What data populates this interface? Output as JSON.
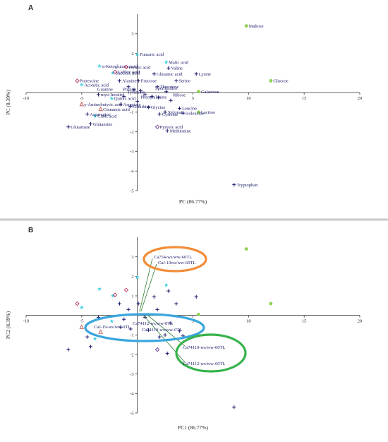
{
  "chart_data": [
    {
      "type": "scatter",
      "panel_label": "A",
      "xlabel": "PC (86.77%)",
      "ylabel": "PC (8.39%)",
      "xlim": [
        -10,
        20
      ],
      "ylim": [
        -5,
        4
      ],
      "x_ticks": [
        -10,
        -5,
        5,
        10,
        15,
        20
      ],
      "y_ticks": [
        -5,
        -4,
        -3,
        -2,
        -1,
        1,
        2,
        3
      ],
      "grid": false,
      "points": [
        {
          "label": "Maltose",
          "x": 9.8,
          "y": 3.4,
          "marker": "dot",
          "color": "#8fd14f"
        },
        {
          "label": "Glucose",
          "x": 12.0,
          "y": 0.6,
          "marker": "dot",
          "color": "#8fd14f"
        },
        {
          "label": "Galactose",
          "x": 5.5,
          "y": 0.05,
          "marker": "dot",
          "color": "#8fd14f"
        },
        {
          "label": "Lactose",
          "x": 5.5,
          "y": -1.0,
          "marker": "dot",
          "color": "#8fd14f"
        },
        {
          "label": "Fumaric acid",
          "x": 0.0,
          "y": 1.95,
          "marker": "star",
          "color": "#3fd0e0"
        },
        {
          "label": "Malic acid",
          "x": 2.6,
          "y": 1.55,
          "marker": "star",
          "color": "#3fd0e0"
        },
        {
          "label": "α-Ketoglutaric acid",
          "x": -3.4,
          "y": 1.35,
          "marker": "star",
          "color": "#3fd0e0"
        },
        {
          "label": "Succinic acid",
          "x": -2.2,
          "y": 1.0,
          "marker": "star",
          "color": "#3fd0e0"
        },
        {
          "label": "Aconitic acid",
          "x": -5.0,
          "y": 0.4,
          "marker": "star",
          "color": "#3fd0e0"
        },
        {
          "label": "Citric acid",
          "x": -3.8,
          "y": -1.2,
          "marker": "star",
          "color": "#3fd0e0"
        },
        {
          "label": "Quinic acid",
          "x": -2.3,
          "y": -0.3,
          "marker": "star",
          "color": "#3fd0e0"
        },
        {
          "label": "Ferulic acid",
          "x": -1.0,
          "y": 1.3,
          "marker": "diamond",
          "color": "#b03060"
        },
        {
          "label": "Caffeic acid",
          "x": -2.0,
          "y": 1.05,
          "marker": "diamond",
          "color": "#b03060"
        },
        {
          "label": "Putrescine",
          "x": -5.4,
          "y": 0.6,
          "marker": "diamond",
          "color": "#b03060"
        },
        {
          "label": "Cinnamic acid",
          "x": -3.3,
          "y": -0.85,
          "marker": "triangle",
          "color": "#c0504d"
        },
        {
          "label": "γ-Aminobutyric acid",
          "x": -5.0,
          "y": -0.6,
          "marker": "triangle",
          "color": "#c0504d"
        },
        {
          "label": "Pyruvic acid",
          "x": 1.8,
          "y": -1.75,
          "marker": "diamond",
          "color": "#6a3d9a"
        },
        {
          "label": "Valine",
          "x": 2.8,
          "y": 1.25,
          "marker": "plus",
          "color": "#1a1a6b"
        },
        {
          "label": "Glutamic acid",
          "x": 1.5,
          "y": 0.95,
          "marker": "plus",
          "color": "#1a1a6b"
        },
        {
          "label": "Lysine",
          "x": 5.3,
          "y": 0.95,
          "marker": "plus",
          "color": "#1a1a6b"
        },
        {
          "label": "Alanine",
          "x": -1.6,
          "y": 0.6,
          "marker": "plus",
          "color": "#1a1a6b"
        },
        {
          "label": "Fructose",
          "x": 0.1,
          "y": 0.6,
          "marker": "plus",
          "color": "#1a1a6b"
        },
        {
          "label": "Serine",
          "x": 3.5,
          "y": 0.6,
          "marker": "plus",
          "color": "#1a1a6b"
        },
        {
          "label": "Threonine",
          "x": 1.8,
          "y": 0.3,
          "marker": "plus",
          "color": "#1a1a6b"
        },
        {
          "label": "Glutamate",
          "x": -6.2,
          "y": -1.75,
          "marker": "plus",
          "color": "#1a1a6b"
        },
        {
          "label": "Glutamine",
          "x": -4.2,
          "y": -1.6,
          "marker": "plus",
          "color": "#1a1a6b"
        },
        {
          "label": "Asparagine",
          "x": -4.5,
          "y": -1.1,
          "marker": "plus",
          "color": "#1a1a6b"
        },
        {
          "label": "Aspartate",
          "x": -1.5,
          "y": -0.6,
          "marker": "plus",
          "color": "#1a1a6b"
        },
        {
          "label": "myo-Inositol",
          "x": -3.5,
          "y": -0.1,
          "marker": "plus",
          "color": "#1a1a6b"
        },
        {
          "label": "Ornithine",
          "x": -0.6,
          "y": -0.7,
          "marker": "plus",
          "color": "#1a1a6b"
        },
        {
          "label": "Glycine",
          "x": 1.0,
          "y": -0.75,
          "marker": "plus",
          "color": "#1a1a6b"
        },
        {
          "label": "Leucine",
          "x": 3.8,
          "y": -0.8,
          "marker": "plus",
          "color": "#1a1a6b"
        },
        {
          "label": "Xylonate",
          "x": 2.5,
          "y": -1.0,
          "marker": "plus",
          "color": "#1a1a6b"
        },
        {
          "label": "Isoleucine",
          "x": 4.1,
          "y": -1.05,
          "marker": "plus",
          "color": "#1a1a6b"
        },
        {
          "label": "Cysteine",
          "x": 2.0,
          "y": -1.1,
          "marker": "plus",
          "color": "#1a1a6b"
        },
        {
          "label": "Methionine",
          "x": 2.7,
          "y": -1.95,
          "marker": "plus",
          "color": "#1a1a6b"
        },
        {
          "label": "Tryptophan",
          "x": 8.7,
          "y": -4.7,
          "marker": "plus",
          "color": "#1a1a6b"
        }
      ],
      "unlabeled_points": [
        {
          "x": -0.8,
          "y": 0.3,
          "marker": "plus",
          "color": "#1a1a6b"
        },
        {
          "x": -0.3,
          "y": 0.15,
          "marker": "plus",
          "color": "#1a1a6b"
        },
        {
          "x": 0.3,
          "y": 0.1,
          "marker": "plus",
          "color": "#1a1a6b"
        },
        {
          "x": 0.7,
          "y": -0.1,
          "marker": "plus",
          "color": "#1a1a6b"
        },
        {
          "x": 1.3,
          "y": -0.2,
          "marker": "plus",
          "color": "#1a1a6b"
        },
        {
          "x": 1.9,
          "y": -0.25,
          "marker": "plus",
          "color": "#1a1a6b"
        },
        {
          "x": 2.6,
          "y": 0.05,
          "marker": "plus",
          "color": "#1a1a6b"
        },
        {
          "x": 3.0,
          "y": -0.4,
          "marker": "plus",
          "color": "#1a1a6b"
        },
        {
          "x": -1.2,
          "y": -0.2,
          "marker": "plus",
          "color": "#1a1a6b"
        },
        {
          "x": 0.0,
          "y": -0.45,
          "marker": "plus",
          "color": "#1a1a6b"
        }
      ],
      "overlapping_text_labels": [
        {
          "text": "Proline",
          "x": -1.3,
          "y": 0.1
        },
        {
          "text": "Guanine",
          "x": -3.6,
          "y": 0.1
        },
        {
          "text": "Sperimidine",
          "x": 1.6,
          "y": 0.15
        },
        {
          "text": "Tyramine",
          "x": -0.9,
          "y": -0.05
        },
        {
          "text": "Phenylalanine",
          "x": 0.3,
          "y": -0.3
        },
        {
          "text": "Ribose",
          "x": 3.2,
          "y": -0.2
        }
      ]
    },
    {
      "type": "scatter",
      "panel_label": "B",
      "xlabel": "PC1 (86.77%)",
      "ylabel": "PC2 (8.39%)",
      "xlim": [
        -10,
        20
      ],
      "ylim": [
        -5,
        4
      ],
      "x_ticks": [
        -10,
        -5,
        5,
        10,
        15,
        20
      ],
      "y_ticks": [
        -5,
        -4,
        -3,
        -2,
        -1,
        1,
        2,
        3
      ],
      "grid": false,
      "annotations": [
        {
          "text": "Ca754-ws/ww-60TL",
          "color": "#1a1a6b"
        },
        {
          "text": "CaJ-10ws/ww-60TL",
          "color": "#1a1a6b"
        },
        {
          "text": "Ca74112-ws/ww-0TL",
          "color": "#1a1a6b"
        },
        {
          "text": "CaJ-19-ws/ww-0TL",
          "color": "#1a1a6b"
        },
        {
          "text": "Ca74110-ws/ww-0TL",
          "color": "#1a1a6b"
        },
        {
          "text": "Ca74110-ws/ww-60TL",
          "color": "#1a1a6b"
        },
        {
          "text": "Ca74112-ws/ww-60TL",
          "color": "#1a1a6b"
        }
      ],
      "ellipse_colors": {
        "orange": "#f28c38",
        "blue": "#3aa6dd",
        "green": "#36b24a"
      },
      "points": [
        {
          "x": 9.8,
          "y": 3.4,
          "marker": "dot",
          "color": "#8fd14f"
        },
        {
          "x": 12.0,
          "y": 0.6,
          "marker": "dot",
          "color": "#8fd14f"
        },
        {
          "x": 5.5,
          "y": 0.05,
          "marker": "dot",
          "color": "#8fd14f"
        },
        {
          "x": 5.5,
          "y": -1.0,
          "marker": "dot",
          "color": "#8fd14f"
        },
        {
          "x": 0.0,
          "y": 1.95,
          "marker": "star",
          "color": "#3fd0e0"
        },
        {
          "x": 2.6,
          "y": 1.55,
          "marker": "star",
          "color": "#3fd0e0"
        },
        {
          "x": -3.4,
          "y": 1.35,
          "marker": "star",
          "color": "#3fd0e0"
        },
        {
          "x": -2.2,
          "y": 1.0,
          "marker": "star",
          "color": "#3fd0e0"
        },
        {
          "x": -5.0,
          "y": 0.4,
          "marker": "star",
          "color": "#3fd0e0"
        },
        {
          "x": -3.8,
          "y": -1.2,
          "marker": "star",
          "color": "#3fd0e0"
        },
        {
          "x": -2.3,
          "y": -0.3,
          "marker": "star",
          "color": "#3fd0e0"
        },
        {
          "x": -1.0,
          "y": 1.3,
          "marker": "diamond",
          "color": "#b03060"
        },
        {
          "x": -2.0,
          "y": 1.05,
          "marker": "diamond",
          "color": "#b03060"
        },
        {
          "x": -5.4,
          "y": 0.6,
          "marker": "diamond",
          "color": "#b03060"
        },
        {
          "x": -3.3,
          "y": -0.85,
          "marker": "triangle",
          "color": "#c0504d"
        },
        {
          "x": -5.0,
          "y": -0.6,
          "marker": "triangle",
          "color": "#c0504d"
        },
        {
          "x": 1.8,
          "y": -1.75,
          "marker": "diamond",
          "color": "#6a3d9a"
        },
        {
          "x": 2.8,
          "y": 1.25,
          "marker": "plus",
          "color": "#1a1a6b"
        },
        {
          "x": 1.5,
          "y": 0.95,
          "marker": "plus",
          "color": "#1a1a6b"
        },
        {
          "x": 5.3,
          "y": 0.95,
          "marker": "plus",
          "color": "#1a1a6b"
        },
        {
          "x": -1.6,
          "y": 0.6,
          "marker": "plus",
          "color": "#1a1a6b"
        },
        {
          "x": 0.1,
          "y": 0.6,
          "marker": "plus",
          "color": "#1a1a6b"
        },
        {
          "x": 3.5,
          "y": 0.6,
          "marker": "plus",
          "color": "#1a1a6b"
        },
        {
          "x": 1.8,
          "y": 0.3,
          "marker": "plus",
          "color": "#1a1a6b"
        },
        {
          "x": -6.2,
          "y": -1.75,
          "marker": "plus",
          "color": "#1a1a6b"
        },
        {
          "x": -4.2,
          "y": -1.6,
          "marker": "plus",
          "color": "#1a1a6b"
        },
        {
          "x": -4.5,
          "y": -1.1,
          "marker": "plus",
          "color": "#1a1a6b"
        },
        {
          "x": -1.5,
          "y": -0.6,
          "marker": "plus",
          "color": "#1a1a6b"
        },
        {
          "x": -3.5,
          "y": -0.1,
          "marker": "plus",
          "color": "#1a1a6b"
        },
        {
          "x": -0.6,
          "y": -0.7,
          "marker": "plus",
          "color": "#1a1a6b"
        },
        {
          "x": 1.0,
          "y": -0.75,
          "marker": "plus",
          "color": "#1a1a6b"
        },
        {
          "x": 3.8,
          "y": -0.8,
          "marker": "plus",
          "color": "#1a1a6b"
        },
        {
          "x": 2.5,
          "y": -1.0,
          "marker": "plus",
          "color": "#1a1a6b"
        },
        {
          "x": 4.1,
          "y": -1.05,
          "marker": "plus",
          "color": "#1a1a6b"
        },
        {
          "x": 2.0,
          "y": -1.1,
          "marker": "plus",
          "color": "#1a1a6b"
        },
        {
          "x": 2.7,
          "y": -1.95,
          "marker": "plus",
          "color": "#1a1a6b"
        },
        {
          "x": 8.7,
          "y": -4.7,
          "marker": "plus",
          "color": "#1a1a6b"
        },
        {
          "x": -0.8,
          "y": 0.3,
          "marker": "plus",
          "color": "#1a1a6b"
        },
        {
          "x": 0.7,
          "y": -0.1,
          "marker": "plus",
          "color": "#1a1a6b"
        },
        {
          "x": 3.0,
          "y": -0.4,
          "marker": "plus",
          "color": "#1a1a6b"
        },
        {
          "x": -1.2,
          "y": -0.2,
          "marker": "plus",
          "color": "#1a1a6b"
        }
      ]
    }
  ]
}
